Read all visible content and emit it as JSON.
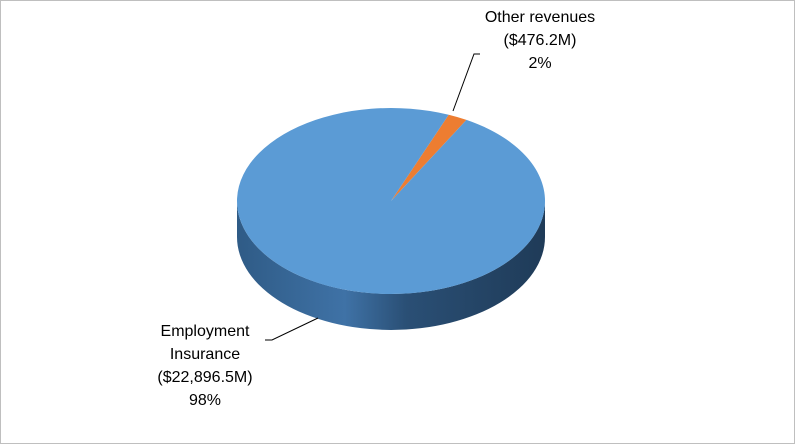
{
  "chart_data": {
    "type": "pie",
    "categories": [
      "Employment Insurance",
      "Other revenues"
    ],
    "values": [
      22896.5,
      476.2
    ],
    "value_labels": [
      "($22,896.5M)",
      "($476.2M)"
    ],
    "percents": [
      98,
      2
    ],
    "percent_labels": [
      "98%",
      "2%"
    ],
    "colors": [
      "#5b9bd5",
      "#ed7d31"
    ]
  }
}
